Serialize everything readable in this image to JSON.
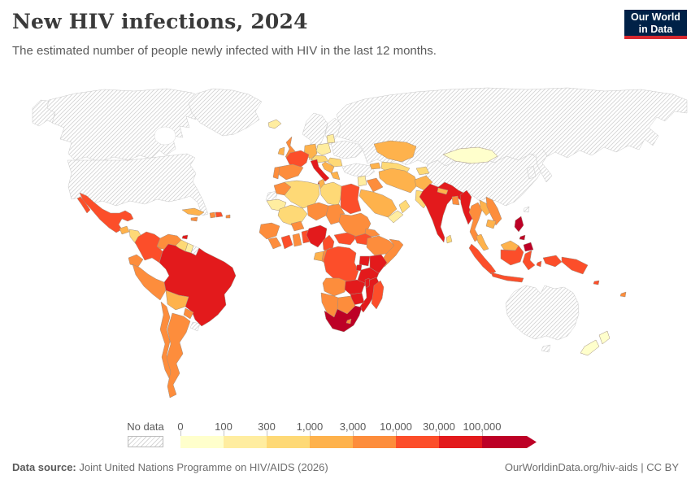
{
  "header": {
    "title": "New HIV infections, 2024",
    "subtitle": "The estimated number of people newly infected with HIV in the last 12 months.",
    "logo_line1": "Our World",
    "logo_line2": "in Data",
    "logo_bg": "#002147",
    "logo_accent": "#d7282f"
  },
  "legend": {
    "no_data_label": "No data",
    "tick_labels": [
      "0",
      "100",
      "300",
      "1,000",
      "3,000",
      "10,000",
      "30,000",
      "100,000"
    ]
  },
  "footer": {
    "source_label": "Data source:",
    "source_text": " Joint United Nations Programme on HIV/AIDS (2026)",
    "attribution": "OurWorldinData.org/hiv-aids | CC BY"
  },
  "chart_data": {
    "type": "heatmap",
    "subtype": "world-choropleth",
    "title": "New HIV infections, 2024",
    "unit": "estimated new HIV infections in the last 12 months (people)",
    "legend_position": "bottom",
    "no_data_style": "diagonal-hatch",
    "bins": [
      {
        "range": "0–100",
        "color": "#FFFFCC"
      },
      {
        "range": "100–300",
        "color": "#FFEDA0"
      },
      {
        "range": "300–1,000",
        "color": "#FED976"
      },
      {
        "range": "1,000–3,000",
        "color": "#FEB24C"
      },
      {
        "range": "3,000–10,000",
        "color": "#FD8D3C"
      },
      {
        "range": "10,000–30,000",
        "color": "#FC4E2A"
      },
      {
        "range": "30,000–100,000",
        "color": "#E31A1C"
      },
      {
        "range": "100,000+",
        "color": "#BD0026"
      }
    ],
    "regions": {
      "usa": {
        "label": "United States",
        "bin": "nd"
      },
      "canada": {
        "label": "Canada",
        "bin": "nd"
      },
      "greenland": {
        "label": "Greenland",
        "bin": "nd"
      },
      "mexico": {
        "label": "Mexico",
        "bin": 5
      },
      "guatemala": {
        "label": "Guatemala",
        "bin": 3
      },
      "honduras-nicaragua": {
        "label": "Honduras & Nicaragua",
        "bin": 2
      },
      "costa-rica-panama": {
        "label": "Costa Rica & Panama",
        "bin": 4
      },
      "cuba": {
        "label": "Cuba",
        "bin": 3
      },
      "jamaica": {
        "label": "Jamaica",
        "bin": 4
      },
      "haiti": {
        "label": "Haiti",
        "bin": 4
      },
      "dominican-republic": {
        "label": "Dominican Republic",
        "bin": 5
      },
      "puerto-rico": {
        "label": "Puerto Rico",
        "bin": 4
      },
      "trinidad-tobago": {
        "label": "Trinidad and Tobago",
        "bin": 6
      },
      "colombia": {
        "label": "Colombia",
        "bin": 5
      },
      "venezuela": {
        "label": "Venezuela",
        "bin": 4
      },
      "guyana": {
        "label": "Guyana",
        "bin": 2
      },
      "suriname": {
        "label": "Suriname",
        "bin": 1
      },
      "french-guiana": {
        "label": "French Guiana",
        "bin": "nd"
      },
      "ecuador": {
        "label": "Ecuador",
        "bin": 4
      },
      "peru": {
        "label": "Peru",
        "bin": 4
      },
      "brazil": {
        "label": "Brazil",
        "bin": 6
      },
      "bolivia": {
        "label": "Bolivia",
        "bin": 3
      },
      "paraguay": {
        "label": "Paraguay",
        "bin": 4
      },
      "chile": {
        "label": "Chile",
        "bin": 4
      },
      "argentina": {
        "label": "Argentina",
        "bin": 4
      },
      "uruguay": {
        "label": "Uruguay",
        "bin": "nd"
      },
      "iceland": {
        "label": "Iceland",
        "bin": 1
      },
      "united-kingdom": {
        "label": "United Kingdom",
        "bin": 4
      },
      "ireland": {
        "label": "Ireland",
        "bin": 3
      },
      "scandinavia": {
        "label": "Norway & Sweden",
        "bin": "nd"
      },
      "finland": {
        "label": "Finland",
        "bin": "nd"
      },
      "denmark": {
        "label": "Denmark",
        "bin": 1
      },
      "germany": {
        "label": "Germany",
        "bin": 3
      },
      "poland": {
        "label": "Poland",
        "bin": 1
      },
      "baltics": {
        "label": "Baltic states",
        "bin": 1
      },
      "ukraine-belarus": {
        "label": "Ukraine & Belarus",
        "bin": "nd"
      },
      "central-europe": {
        "label": "Czechia, Austria & Hungary",
        "bin": 2
      },
      "france": {
        "label": "France",
        "bin": 5
      },
      "spain": {
        "label": "Spain",
        "bin": 4
      },
      "portugal": {
        "label": "Portugal",
        "bin": 4
      },
      "italy": {
        "label": "Italy",
        "bin": 6
      },
      "romania": {
        "label": "Romania",
        "bin": 2
      },
      "balkans": {
        "label": "Balkans",
        "bin": 3
      },
      "greece": {
        "label": "Greece",
        "bin": 3
      },
      "turkey": {
        "label": "Turkey",
        "bin": "nd"
      },
      "russia": {
        "label": "Russia",
        "bin": "nd"
      },
      "kazakhstan": {
        "label": "Kazakhstan",
        "bin": 3
      },
      "central-asia": {
        "label": "Central Asia",
        "bin": 2
      },
      "caucasus": {
        "label": "Caucasus",
        "bin": 3
      },
      "levant": {
        "label": "Syria & Levant",
        "bin": 1
      },
      "iraq": {
        "label": "Iraq",
        "bin": 4
      },
      "saudi-arabia": {
        "label": "Saudi Arabia",
        "bin": 3
      },
      "yemen": {
        "label": "Yemen",
        "bin": 1
      },
      "oman": {
        "label": "Oman",
        "bin": 2
      },
      "iran": {
        "label": "Iran",
        "bin": 3
      },
      "afghanistan": {
        "label": "Afghanistan",
        "bin": 3
      },
      "pakistan": {
        "label": "Pakistan",
        "bin": 2
      },
      "india": {
        "label": "India",
        "bin": 6
      },
      "nepal": {
        "label": "Nepal",
        "bin": 3
      },
      "bangladesh": {
        "label": "Bangladesh",
        "bin": 4
      },
      "sri-lanka": {
        "label": "Sri Lanka",
        "bin": 2
      },
      "china": {
        "label": "China",
        "bin": "nd"
      },
      "mongolia": {
        "label": "Mongolia",
        "bin": 0
      },
      "korea": {
        "label": "Korea",
        "bin": "nd"
      },
      "japan": {
        "label": "Japan",
        "bin": "nd"
      },
      "taiwan": {
        "label": "Taiwan",
        "bin": "nd"
      },
      "myanmar": {
        "label": "Myanmar",
        "bin": 6
      },
      "thailand": {
        "label": "Thailand",
        "bin": 4
      },
      "laos": {
        "label": "Laos",
        "bin": 3
      },
      "vietnam": {
        "label": "Vietnam",
        "bin": 4
      },
      "cambodia": {
        "label": "Cambodia",
        "bin": 3
      },
      "malaysia": {
        "label": "Malaysia",
        "bin": 3
      },
      "indonesia": {
        "label": "Indonesia",
        "bin": 5
      },
      "philippines": {
        "label": "Philippines",
        "bin": 7
      },
      "papua-new-guinea": {
        "label": "Papua New Guinea",
        "bin": 5
      },
      "solomon-islands": {
        "label": "Solomon Islands",
        "bin": 5
      },
      "australia": {
        "label": "Australia",
        "bin": "nd"
      },
      "new-zealand": {
        "label": "New Zealand",
        "bin": 0
      },
      "fiji": {
        "label": "Fiji",
        "bin": 4
      },
      "morocco": {
        "label": "Morocco",
        "bin": 4
      },
      "western-sahara": {
        "label": "Western Sahara",
        "bin": "nd"
      },
      "algeria": {
        "label": "Algeria",
        "bin": 2
      },
      "tunisia": {
        "label": "Tunisia",
        "bin": 3
      },
      "libya": {
        "label": "Libya",
        "bin": 2
      },
      "egypt": {
        "label": "Egypt",
        "bin": 5
      },
      "mauritania": {
        "label": "Mauritania",
        "bin": 1
      },
      "mali": {
        "label": "Mali",
        "bin": 2
      },
      "niger": {
        "label": "Niger",
        "bin": 4
      },
      "chad": {
        "label": "Chad",
        "bin": 4
      },
      "sudan": {
        "label": "Sudan",
        "bin": 4
      },
      "senegal-guinea": {
        "label": "Senegal & Guinea",
        "bin": 4
      },
      "sierra-leone-liberia": {
        "label": "Sierra Leone & Liberia",
        "bin": 4
      },
      "ivory-coast": {
        "label": "Cote d'Ivoire",
        "bin": 5
      },
      "ghana": {
        "label": "Ghana",
        "bin": 4
      },
      "togo-benin": {
        "label": "Togo & Benin",
        "bin": 5
      },
      "burkina-faso": {
        "label": "Burkina Faso",
        "bin": 4
      },
      "nigeria": {
        "label": "Nigeria",
        "bin": 6
      },
      "cameroon": {
        "label": "Cameroon",
        "bin": 5
      },
      "central-african-republic": {
        "label": "Central African Republic",
        "bin": 5
      },
      "south-sudan": {
        "label": "South Sudan",
        "bin": 5
      },
      "eritrea": {
        "label": "Eritrea & Djibouti",
        "bin": 4
      },
      "ethiopia": {
        "label": "Ethiopia",
        "bin": 4
      },
      "somalia": {
        "label": "Somalia",
        "bin": 4
      },
      "uganda": {
        "label": "Uganda",
        "bin": 6
      },
      "kenya": {
        "label": "Kenya",
        "bin": 6
      },
      "gabon": {
        "label": "Gabon",
        "bin": 3
      },
      "congo": {
        "label": "Congo",
        "bin": 4
      },
      "drc": {
        "label": "Democratic Republic of Congo",
        "bin": 5
      },
      "rwanda-burundi": {
        "label": "Rwanda & Burundi",
        "bin": 6
      },
      "tanzania": {
        "label": "Tanzania",
        "bin": 6
      },
      "angola": {
        "label": "Angola",
        "bin": 4
      },
      "zambia": {
        "label": "Zambia",
        "bin": 6
      },
      "malawi": {
        "label": "Malawi",
        "bin": 6
      },
      "mozambique": {
        "label": "Mozambique",
        "bin": 6
      },
      "zimbabwe": {
        "label": "Zimbabwe",
        "bin": 6
      },
      "botswana": {
        "label": "Botswana",
        "bin": 4
      },
      "namibia": {
        "label": "Namibia",
        "bin": 4
      },
      "south-africa": {
        "label": "South Africa",
        "bin": 7
      },
      "lesotho": {
        "label": "Lesotho",
        "bin": 4
      },
      "madagascar": {
        "label": "Madagascar",
        "bin": 5
      }
    }
  }
}
